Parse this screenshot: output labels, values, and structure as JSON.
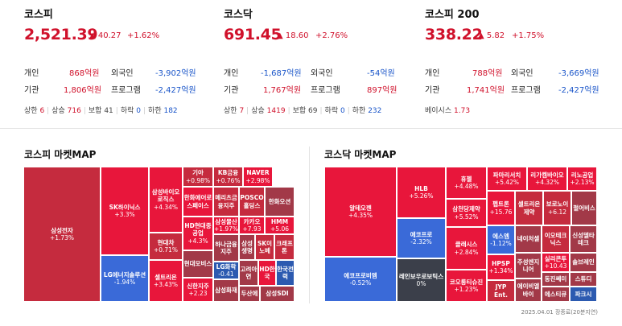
{
  "indices": [
    {
      "name": "코스피",
      "value": "2,521.39",
      "change": "▲ 40.27",
      "pct": "+1.62%",
      "individual_label": "개인",
      "individual": "868억원",
      "foreign_label": "외국인",
      "foreign": "-3,902억원",
      "inst_label": "기관",
      "inst": "1,806억원",
      "program_label": "프로그램",
      "program": "-2,427억원",
      "upper_label": "상한",
      "upper": "6",
      "rise_label": "상승",
      "rise": "716",
      "flat_label": "보합",
      "flat": "41",
      "fall_label": "하락",
      "fall": "0",
      "lower_label": "하한",
      "lower": "182"
    },
    {
      "name": "코스닥",
      "value": "691.45",
      "change": "▲ 18.60",
      "pct": "+2.76%",
      "individual_label": "개인",
      "individual": "-1,687억원",
      "foreign_label": "외국인",
      "foreign": "-54억원",
      "inst_label": "기관",
      "inst": "1,767억원",
      "program_label": "프로그램",
      "program": "897억원",
      "upper_label": "상한",
      "upper": "7",
      "rise_label": "상승",
      "rise": "1419",
      "flat_label": "보합",
      "flat": "69",
      "fall_label": "하락",
      "fall": "0",
      "lower_label": "하한",
      "lower": "232"
    },
    {
      "name": "코스피 200",
      "value": "338.22",
      "change": "▲ 5.82",
      "pct": "+1.75%",
      "individual_label": "개인",
      "individual": "788억원",
      "foreign_label": "외국인",
      "foreign": "-3,669억원",
      "inst_label": "기관",
      "inst": "1,741억원",
      "program_label": "프로그램",
      "program": "-2,427억원",
      "basis_label": "베이시스",
      "basis": "1.73"
    }
  ],
  "kospi_map": {
    "title": "코스피 마켓MAP",
    "cells": [
      {
        "name": "삼성전자",
        "pct": "+1.73%"
      },
      {
        "name": "SK하이닉스",
        "pct": "+3.3%"
      },
      {
        "name": "LG에너지솔루션",
        "pct": "-1.94%"
      },
      {
        "name": "삼성바이오로직스",
        "pct": "+4.34%"
      },
      {
        "name": "현대차",
        "pct": "+0.71%"
      },
      {
        "name": "셀트리온",
        "pct": "+3.43%"
      },
      {
        "name": "기아",
        "pct": "+0.98%"
      },
      {
        "name": "KB금융",
        "pct": "+0.76%"
      },
      {
        "name": "NAVER",
        "pct": "+2.98%"
      },
      {
        "name": "한화에어로스페이스",
        "pct": ""
      },
      {
        "name": "메리츠금융지주",
        "pct": ""
      },
      {
        "name": "POSCO홀딩스",
        "pct": ""
      },
      {
        "name": "한화오션",
        "pct": ""
      },
      {
        "name": "HD현대중공업",
        "pct": "+4.3%"
      },
      {
        "name": "삼성물산",
        "pct": "+1.97%"
      },
      {
        "name": "카카오",
        "pct": "+7.93"
      },
      {
        "name": "HMM",
        "pct": "+5.06"
      },
      {
        "name": "현대모비스",
        "pct": ""
      },
      {
        "name": "하나금융지주",
        "pct": ""
      },
      {
        "name": "삼성생명",
        "pct": ""
      },
      {
        "name": "SK이노베",
        "pct": ""
      },
      {
        "name": "크래프톤",
        "pct": ""
      },
      {
        "name": "LG화학",
        "pct": "-0.41"
      },
      {
        "name": "고려아연",
        "pct": ""
      },
      {
        "name": "HD한국",
        "pct": ""
      },
      {
        "name": "한국전력",
        "pct": ""
      },
      {
        "name": "신한지주",
        "pct": "+2.23"
      },
      {
        "name": "삼성화재",
        "pct": ""
      },
      {
        "name": "두산에",
        "pct": ""
      },
      {
        "name": "삼성SDI",
        "pct": ""
      }
    ]
  },
  "kosdaq_map": {
    "title": "코스닥 마켓MAP",
    "cells": [
      {
        "name": "알테오젠",
        "pct": "+4.35%"
      },
      {
        "name": "에코프로비엠",
        "pct": "-0.52%"
      },
      {
        "name": "HLB",
        "pct": "+5.26%"
      },
      {
        "name": "에코프로",
        "pct": "-2.32%"
      },
      {
        "name": "레인보우로보틱스",
        "pct": "0%"
      },
      {
        "name": "휴젤",
        "pct": "+4.48%"
      },
      {
        "name": "삼천당제약",
        "pct": "+5.52%"
      },
      {
        "name": "클래시스",
        "pct": "+2.84%"
      },
      {
        "name": "코오롱티슈진",
        "pct": "+1.23%"
      },
      {
        "name": "파마리서치",
        "pct": "+5.42%"
      },
      {
        "name": "리가켐바이오",
        "pct": "+4.32%"
      },
      {
        "name": "리노공업",
        "pct": "+2.13%"
      },
      {
        "name": "펩트론",
        "pct": "+15.76"
      },
      {
        "name": "셀트리온제약",
        "pct": ""
      },
      {
        "name": "보로노이",
        "pct": "+6.12"
      },
      {
        "name": "펄어비스",
        "pct": ""
      },
      {
        "name": "에스엠",
        "pct": "-1.12%"
      },
      {
        "name": "네이처셀",
        "pct": ""
      },
      {
        "name": "이오테크닉스",
        "pct": ""
      },
      {
        "name": "신성델타테크",
        "pct": ""
      },
      {
        "name": "HPSP",
        "pct": "+1.34%"
      },
      {
        "name": "주성엔지니어",
        "pct": ""
      },
      {
        "name": "실리콘투",
        "pct": "+10.43"
      },
      {
        "name": "솔브레인",
        "pct": ""
      },
      {
        "name": "JYP Ent.",
        "pct": ""
      },
      {
        "name": "에이비엘바이",
        "pct": ""
      },
      {
        "name": "동진쎄미",
        "pct": ""
      },
      {
        "name": "스튜디",
        "pct": ""
      },
      {
        "name": "에스티큐",
        "pct": ""
      },
      {
        "name": "파크시",
        "pct": ""
      }
    ]
  },
  "footer": "2025.04.01 장종료(20분지연)",
  "colors": {
    "up_strong": "#e8163b",
    "up_mid": "#c52b3e",
    "up_weak": "#a23948",
    "down": "#3a6ad8",
    "down_dark": "#2c5ab0",
    "flat": "#3b3f4a",
    "rise": "#d0112b",
    "fall": "#1a55c9"
  }
}
